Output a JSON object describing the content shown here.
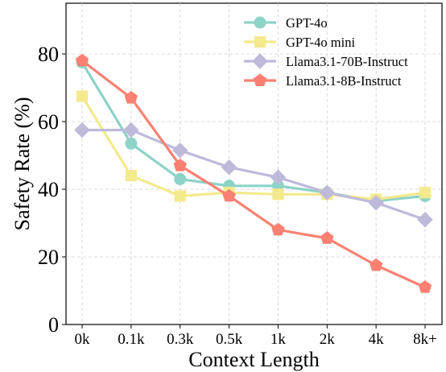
{
  "chart_data": {
    "type": "line",
    "xlabel": "Context Length",
    "ylabel": "Safety Rate (%)",
    "categories": [
      "0k",
      "0.1k",
      "0.3k",
      "0.5k",
      "1k",
      "2k",
      "4k",
      "8k+"
    ],
    "ylim": [
      0,
      95
    ],
    "yticks": [
      0,
      20,
      40,
      60,
      80
    ],
    "grid": true,
    "legend_position": "top-right",
    "series": [
      {
        "name": "GPT-4o",
        "color": "#8dd3c7",
        "marker": "circle",
        "values": [
          77.5,
          53.5,
          43,
          41,
          41,
          39,
          36.5,
          38
        ]
      },
      {
        "name": "GPT-4o mini",
        "color": "#f4e98c",
        "marker": "square",
        "values": [
          67.5,
          44,
          38,
          39,
          38.5,
          38.5,
          37,
          39
        ]
      },
      {
        "name": "Llama3.1-70B-Instruct",
        "color": "#bebada",
        "marker": "diamond",
        "values": [
          57.5,
          57.5,
          51.5,
          46.5,
          43.5,
          39,
          36,
          31
        ]
      },
      {
        "name": "Llama3.1-8B-Instruct",
        "color": "#fb8072",
        "marker": "pentagon",
        "values": [
          78,
          67,
          47,
          38,
          28,
          25.5,
          17.5,
          11
        ]
      }
    ]
  }
}
